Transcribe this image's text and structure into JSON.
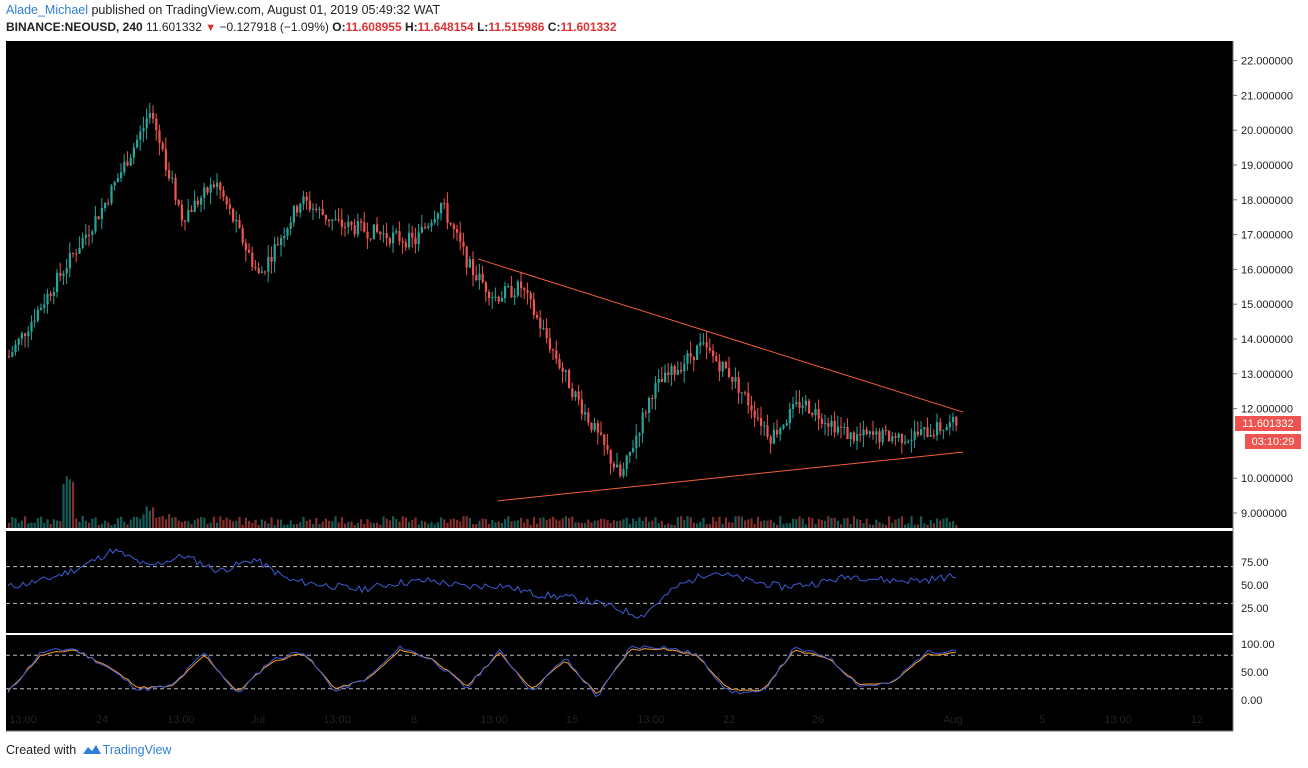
{
  "header": {
    "author": "Alade_Michael",
    "published": "published on TradingView.com, August 01, 2019 05:49:32 WAT",
    "symbol": "BINANCE:NEOUSD, 240",
    "last": "11.601332",
    "change": "−0.127918 (−1.09%)",
    "o_label": "O:",
    "o_value": "11.608955",
    "h_label": "H:",
    "h_value": "11.648154",
    "l_label": "L:",
    "l_value": "11.515986",
    "c_label": "C:",
    "c_value": "11.601332"
  },
  "price_axis": {
    "ticks": [
      "22.000000",
      "21.000000",
      "20.000000",
      "19.000000",
      "18.000000",
      "17.000000",
      "16.000000",
      "15.000000",
      "14.000000",
      "13.000000",
      "12.000000",
      "10.000000",
      "9.000000"
    ],
    "last_price_label": "11.601332",
    "countdown_label": "03:10:29"
  },
  "rsi_axis": {
    "ticks": [
      "75.00",
      "50.00",
      "25.00"
    ]
  },
  "stoch_axis": {
    "ticks": [
      "100.00",
      "50.00",
      "0.00"
    ]
  },
  "time_axis": {
    "ticks": [
      "13:00",
      "24",
      "13:00",
      "Jul",
      "13:00",
      "8",
      "13:00",
      "15",
      "13:00",
      "22",
      "26",
      "Aug",
      "5",
      "13:00",
      "12"
    ]
  },
  "colors": {
    "up": "#26a69a",
    "down": "#ef5350",
    "rsi": "#3e5bd6",
    "stoch_k": "#3e5bd6",
    "stoch_d": "#f59b2a",
    "trendline": "#f0603a",
    "axis_bg": "#ffffff",
    "pane_bg": "#000000"
  },
  "footer": {
    "created_with": "Created with",
    "brand": "TradingView"
  },
  "chart_data": [
    {
      "type": "candlestick",
      "symbol": "BINANCE:NEOUSD",
      "timeframe": "240",
      "ylim": [
        8.5,
        22.5
      ],
      "price_anchors": [
        [
          "13:00",
          13.5
        ],
        [
          "24",
          17.8
        ],
        [
          "",
          20.5
        ],
        [
          "13:00",
          17.5
        ],
        [
          "",
          18.5
        ],
        [
          "Jul",
          15.8
        ],
        [
          "",
          18.0
        ],
        [
          "13:00",
          17.3
        ],
        [
          "8",
          16.8
        ],
        [
          "",
          17.9
        ],
        [
          "",
          16.0
        ],
        [
          "13:00",
          15.2
        ],
        [
          "",
          15.5
        ],
        [
          "15",
          12.5
        ],
        [
          "",
          10.0
        ],
        [
          "13:00",
          12.5
        ],
        [
          "",
          13.8
        ],
        [
          "22",
          13.0
        ],
        [
          "",
          11.2
        ],
        [
          "26",
          12.2
        ],
        [
          "",
          11.2
        ],
        [
          "",
          11.2
        ],
        [
          "Aug",
          11.6
        ]
      ],
      "trendlines": [
        {
          "from": [
            "13:00",
            16.3
          ],
          "to": [
            "Aug",
            11.9
          ]
        },
        {
          "from": [
            "13:00",
            9.35
          ],
          "to": [
            "Aug",
            10.75
          ]
        }
      ]
    },
    {
      "type": "line",
      "name": "RSI",
      "ylim": [
        0,
        100
      ],
      "levels": [
        70,
        30
      ],
      "series": [
        {
          "values": [
            48,
            55,
            68,
            88,
            70,
            82,
            65,
            78,
            55,
            50,
            45,
            52,
            55,
            48,
            50,
            40,
            36,
            28,
            16,
            48,
            65,
            55,
            48,
            52,
            60,
            55,
            55,
            60
          ]
        }
      ]
    },
    {
      "type": "line",
      "name": "Stochastic",
      "ylim": [
        0,
        100
      ],
      "levels": [
        80,
        20
      ],
      "series": [
        {
          "values": [
            12,
            85,
            92,
            60,
            18,
            25,
            85,
            10,
            70,
            88,
            15,
            40,
            95,
            70,
            20,
            88,
            15,
            75,
            5,
            95,
            95,
            82,
            15,
            12,
            92,
            78,
            25,
            30,
            85,
            90
          ]
        },
        {
          "values": [
            15,
            80,
            90,
            62,
            22,
            24,
            80,
            14,
            66,
            85,
            20,
            38,
            90,
            72,
            24,
            84,
            20,
            70,
            10,
            90,
            92,
            80,
            20,
            15,
            88,
            76,
            28,
            30,
            80,
            86
          ]
        }
      ]
    }
  ]
}
